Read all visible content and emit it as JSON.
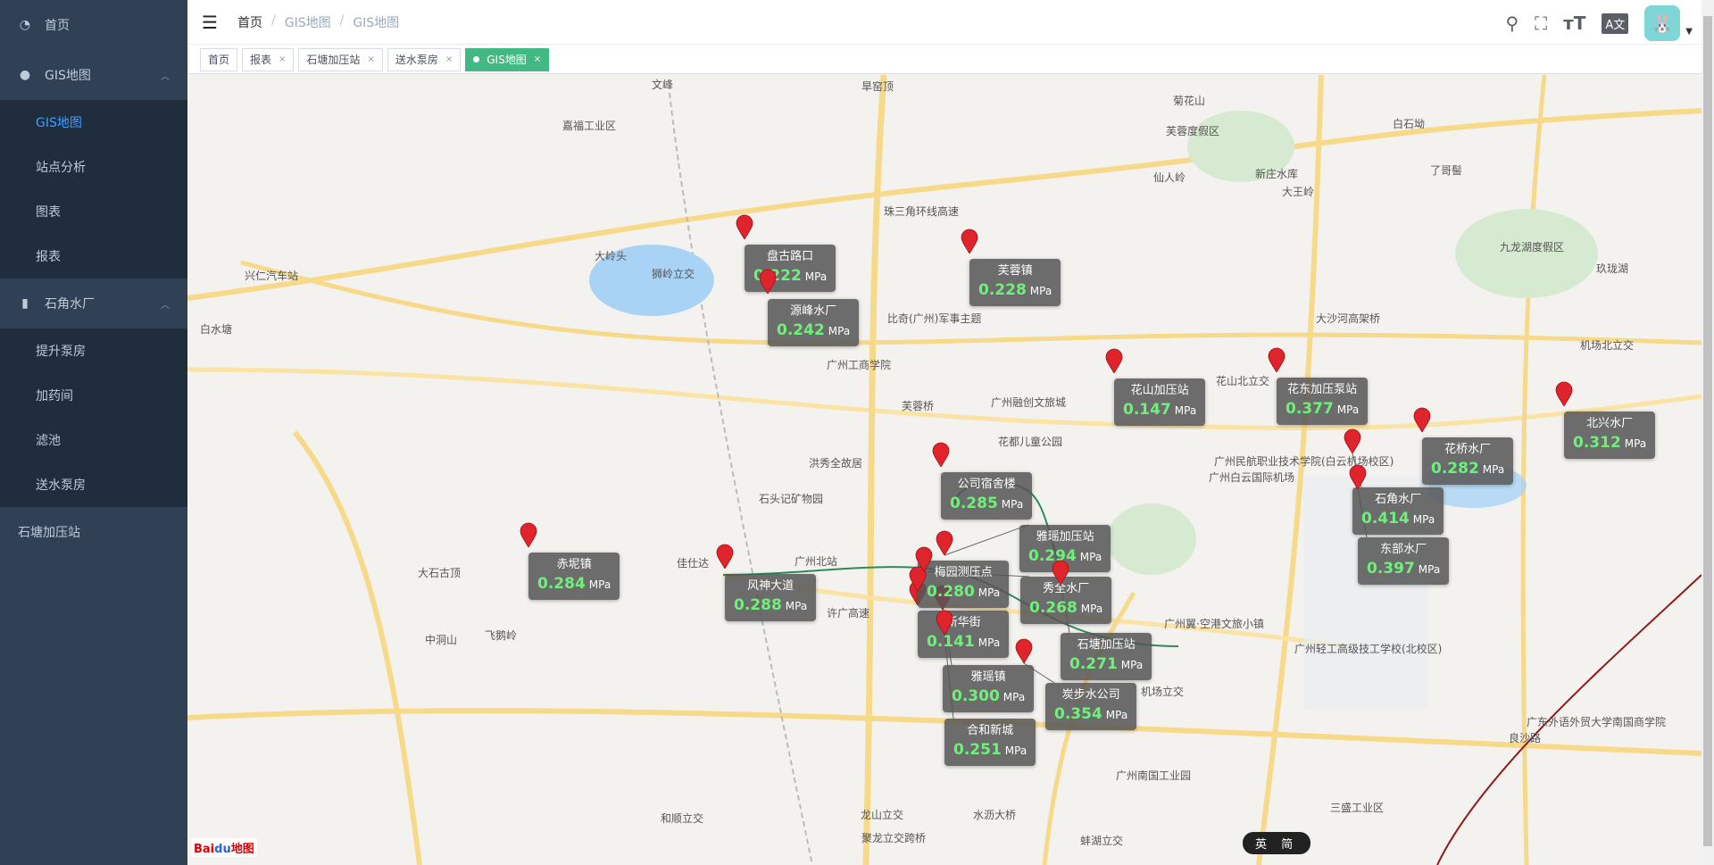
{
  "sidebar": {
    "items": [
      {
        "label": "首页",
        "icon": "dashboard-icon"
      },
      {
        "label": "GIS地图",
        "icon": "globe-icon",
        "open": true,
        "children": [
          {
            "label": "GIS地图",
            "active": true
          },
          {
            "label": "站点分析"
          },
          {
            "label": "图表"
          },
          {
            "label": "报表"
          }
        ]
      },
      {
        "label": "石角水厂",
        "icon": "bar-chart-icon",
        "open": true,
        "children": [
          {
            "label": "提升泵房"
          },
          {
            "label": "加药间"
          },
          {
            "label": "滤池"
          },
          {
            "label": "送水泵房"
          }
        ]
      },
      {
        "label": "石塘加压站"
      }
    ]
  },
  "header": {
    "breadcrumb": [
      "首页",
      "GIS地图",
      "GIS地图"
    ],
    "tools": [
      "search-icon",
      "fullscreen-icon",
      "font-size-icon",
      "translate-icon"
    ]
  },
  "tabs": [
    {
      "label": "首页"
    },
    {
      "label": "报表"
    },
    {
      "label": "石塘加压站"
    },
    {
      "label": "送水泵房"
    },
    {
      "label": "GIS地图",
      "active": true
    }
  ],
  "map": {
    "unit": "MPa",
    "stations": [
      {
        "name": "盘古路口",
        "value": "0.222"
      },
      {
        "name": "源峰水厂",
        "value": "0.242"
      },
      {
        "name": "芙蓉镇",
        "value": "0.228"
      },
      {
        "name": "花山加压站",
        "value": "0.147"
      },
      {
        "name": "花东加压泵站",
        "value": "0.377"
      },
      {
        "name": "北兴水厂",
        "value": "0.312"
      },
      {
        "name": "花桥水厂",
        "value": "0.282"
      },
      {
        "name": "石角水厂",
        "value": "0.414"
      },
      {
        "name": "东部水厂",
        "value": "0.397"
      },
      {
        "name": "公司宿舍楼",
        "value": "0.285"
      },
      {
        "name": "赤坭镇",
        "value": "0.284"
      },
      {
        "name": "风神大道",
        "value": "0.288"
      },
      {
        "name": "新华街",
        "value": "0.141"
      },
      {
        "name": "雅瑶镇",
        "value": "0.300"
      },
      {
        "name": "梅园测压点",
        "value": "0.280"
      },
      {
        "name": "秀全水厂",
        "value": "0.268"
      },
      {
        "name": "雅瑶加压站",
        "value": "0.294"
      },
      {
        "name": "合和新城",
        "value": "0.251"
      },
      {
        "name": "石塘加压站",
        "value": "0.271"
      },
      {
        "name": "炭步水公司",
        "value": "0.354"
      }
    ],
    "places": [
      "文峰",
      "旱窑顶",
      "嘉福工业区",
      "芙蓉度假区",
      "菊花山",
      "仙人岭",
      "新庄水库",
      "大王岭",
      "白石坳",
      "了哥髻",
      "珠三角环线高速",
      "比奇(广州)军事主题",
      "狮岭立交",
      "广州工商学院",
      "芙蓉桥",
      "花山北立交",
      "大沙河高架桥",
      "机场北立交",
      "广州融创文旅城",
      "花都儿童公园",
      "广州白云国际机场",
      "洪秀全故居",
      "石头记矿物园",
      "佳仕达",
      "广州北站",
      "许广高速",
      "广州民航职业技术学院(白云机场校区)",
      "广州翼·空港文旅小镇",
      "机场立交",
      "广州南国工业园",
      "和顺立交",
      "龙山立交",
      "水沥大桥",
      "聚龙立交跨桥",
      "蚌湖立交",
      "三盛工业区",
      "良沙路",
      "广州轻工高级技工学校(北校区)",
      "广东外语外贸大学南国商学院",
      "大岭头",
      "中洞山",
      "飞鹅岭",
      "白水塘",
      "大石古顶",
      "兴仁汽车站",
      "九龙湖度假区",
      "玖珑湖"
    ],
    "logo": "Bai地图",
    "lang_toolbar": "英 简"
  },
  "colors": {
    "sidebar": "#304156",
    "submenu": "#1f2d3d",
    "active": "#409eff",
    "tag_active": "#42b983",
    "value": "#6ef07a"
  }
}
